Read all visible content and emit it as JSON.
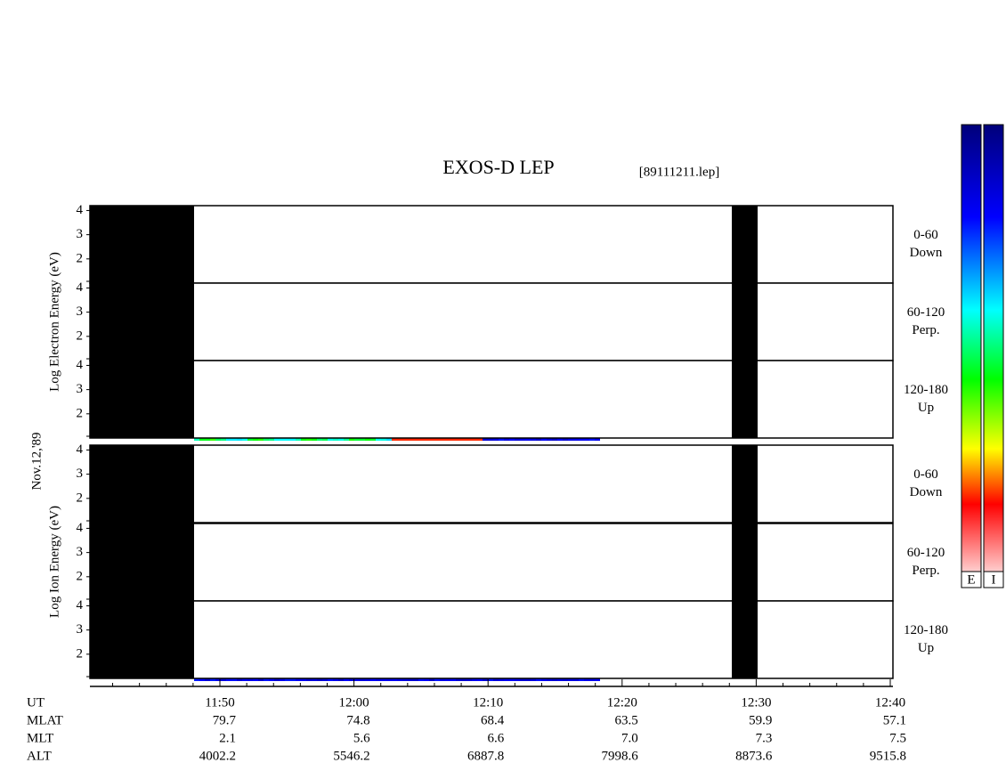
{
  "header": {
    "title": "EXOS-D LEP",
    "file": "[89111211.lep]"
  },
  "date": "Nov.12,'89",
  "y_ticks": [
    2,
    3,
    4
  ],
  "y_range": [
    1,
    4.2
  ],
  "panels": [
    {
      "y_label": "Log Electron Energy (eV)",
      "rows": [
        {
          "angle": "0-60",
          "dir": "Down"
        },
        {
          "angle": "60-120",
          "dir": "Perp."
        },
        {
          "angle": "120-180",
          "dir": "Up"
        }
      ]
    },
    {
      "y_label": "Log Ion Energy (eV)",
      "rows": [
        {
          "angle": "0-60",
          "dir": "Down"
        },
        {
          "angle": "60-120",
          "dir": "Perp."
        },
        {
          "angle": "120-180",
          "dir": "Up"
        }
      ]
    }
  ],
  "colorbars": [
    "E",
    "I"
  ],
  "time_axis": {
    "rows": [
      {
        "label": "UT",
        "values": [
          "11:50",
          "12:00",
          "12:10",
          "12:20",
          "12:30",
          "12:40"
        ]
      },
      {
        "label": "MLAT",
        "values": [
          "79.7",
          "74.8",
          "68.4",
          "63.5",
          "59.9",
          "57.1"
        ]
      },
      {
        "label": "MLT",
        "values": [
          "2.1",
          "5.6",
          "6.6",
          "7.0",
          "7.3",
          "7.5"
        ]
      },
      {
        "label": "ALT",
        "values": [
          "4002.2",
          "5546.2",
          "6887.8",
          "7998.6",
          "8873.6",
          "9515.8"
        ]
      }
    ]
  }
}
